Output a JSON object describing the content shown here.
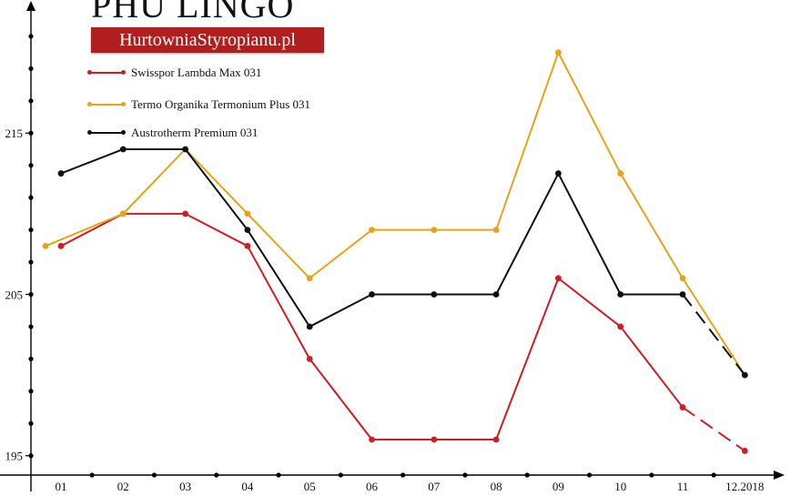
{
  "logo": {
    "title": "PHU LINGO",
    "subtitle": "HurtowniaStyropianu.pl"
  },
  "colors": {
    "swisspor": "#d01c25",
    "termo": "#e8a317",
    "austrotherm": "#111111",
    "axis": "#000000"
  },
  "chart_data": {
    "type": "line",
    "title": "",
    "xlabel": "",
    "ylabel": "",
    "categories": [
      "01",
      "02",
      "03",
      "04",
      "05",
      "06",
      "07",
      "08",
      "09",
      "10",
      "11",
      "12.2018"
    ],
    "ylim": [
      193.8,
      222.8
    ],
    "yticks": [
      195,
      205,
      215
    ],
    "grid": false,
    "legend_position": "top-left",
    "series": [
      {
        "name": "Swisspor Lambda Max 031",
        "color": "#d01c25",
        "values": [
          208,
          210,
          210,
          208,
          201,
          196,
          196,
          196,
          206,
          203,
          198,
          195.3
        ],
        "dashed_last_segment": true
      },
      {
        "name": "Termo Organika Termonium Plus 031",
        "color": "#e8a317",
        "values": [
          208,
          210,
          214,
          210,
          206,
          209,
          209,
          209,
          220,
          212.5,
          206,
          200
        ],
        "dashed_last_segment": false
      },
      {
        "name": "Austrotherm Premium 031",
        "color": "#111111",
        "values": [
          212.5,
          214,
          214,
          209,
          203,
          205,
          205,
          205,
          212.5,
          205,
          205,
          200
        ],
        "dashed_last_segment": true
      }
    ]
  }
}
